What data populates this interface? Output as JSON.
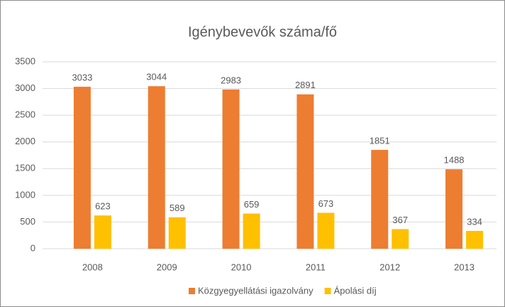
{
  "chart_data": {
    "type": "bar",
    "title": "Igénybevevők száma/fő",
    "categories": [
      "2008",
      "2009",
      "2010",
      "2011",
      "2012",
      "2013"
    ],
    "series": [
      {
        "name": "Közgyegyellátási igazolvány",
        "color": "#ed7d31",
        "values": [
          3033,
          3044,
          2983,
          2891,
          1851,
          1488
        ]
      },
      {
        "name": "Ápolási díj",
        "color": "#ffc000",
        "values": [
          623,
          589,
          659,
          673,
          367,
          334
        ]
      }
    ],
    "ylim": [
      0,
      3500
    ],
    "yticks": [
      0,
      500,
      1000,
      1500,
      2000,
      2500,
      3000,
      3500
    ],
    "grid": true,
    "legend": "bottom"
  }
}
